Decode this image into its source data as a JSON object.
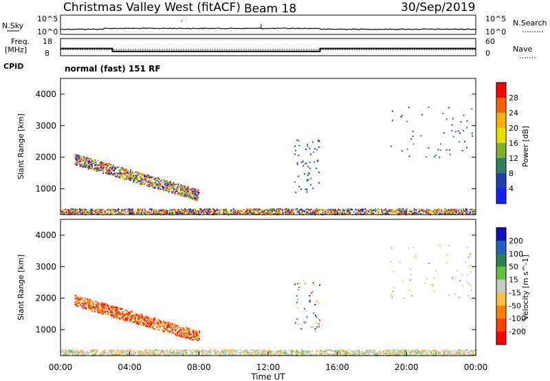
{
  "header": {
    "title": "Christmas Valley West (fitACF)",
    "beam": "Beam 18",
    "date": "30/Sep/2019"
  },
  "params": {
    "nsky_label": "N.Sky",
    "nsearch_label": "N.Search",
    "noise_ticks": [
      "10^5",
      "10^0"
    ],
    "noise_ticks_right": [
      "10^5",
      "10^0"
    ],
    "freq_label_1": "Freq.",
    "freq_label_2": "[MHz]",
    "freq_ticks": [
      "18",
      "8"
    ],
    "nave_label": "Nave",
    "nave_ticks": [
      "60",
      "0"
    ],
    "cpid_label": "CPID",
    "cpid_text": "normal (fast) 151 RF"
  },
  "chart_data": [
    {
      "type": "heatmap",
      "title": "",
      "ylabel": "Slant Range [km]",
      "ylim": [
        180,
        4500
      ],
      "yticks": [
        "4000",
        "3000",
        "2000",
        "1000"
      ],
      "colorbar": {
        "label": "Power [dB]",
        "ticks": [
          "28",
          "24",
          "20",
          "16",
          "12",
          "8",
          "4"
        ],
        "colors": [
          "#ff0000",
          "#ff6000",
          "#ffb000",
          "#e8e000",
          "#7fb030",
          "#2f8060",
          "#2040b0",
          "#1020ff"
        ]
      },
      "echo_regions": [
        {
          "name": "morning-band",
          "t": [
            0.8,
            8.0
          ],
          "r": [
            1950,
            800
          ],
          "level": "mixed-power"
        },
        {
          "name": "near-range-clutter",
          "t": [
            0.0,
            24.0
          ],
          "r": [
            200,
            380
          ],
          "level": "mixed-power"
        },
        {
          "name": "afternoon-patches",
          "t": [
            13.5,
            15.0
          ],
          "r": [
            900,
            2600
          ],
          "level": "low-power"
        },
        {
          "name": "evening-patches",
          "t": [
            19.0,
            23.8
          ],
          "r": [
            2000,
            3700
          ],
          "level": "low-power"
        }
      ]
    },
    {
      "type": "heatmap",
      "title": "",
      "xlabel": "Time UT",
      "ylabel": "Slant Range [km]",
      "ylim": [
        180,
        4500
      ],
      "yticks": [
        "4000",
        "3000",
        "2000",
        "1000"
      ],
      "xticks": [
        "00:00",
        "04:00",
        "08:00",
        "12:00",
        "16:00",
        "20:00",
        "00:00"
      ],
      "colorbar": {
        "label": "Velocity [m s^-1]",
        "ticks": [
          "200",
          "100",
          "50",
          "15",
          "-15",
          "-50",
          "-100",
          "-200"
        ],
        "colors": [
          "#1010c0",
          "#2060c0",
          "#308050",
          "#60c040",
          "#c8c8c8",
          "#ffc040",
          "#ff8000",
          "#ff4000",
          "#ff0000"
        ]
      },
      "echo_regions": [
        {
          "name": "morning-band",
          "t": [
            0.8,
            8.0
          ],
          "r": [
            1950,
            800
          ],
          "level": "negative-velocity"
        },
        {
          "name": "near-range-clutter",
          "t": [
            0.0,
            24.0
          ],
          "r": [
            200,
            380
          ],
          "level": "near-zero"
        },
        {
          "name": "afternoon-patches",
          "t": [
            13.5,
            15.0
          ],
          "r": [
            900,
            2600
          ],
          "level": "mixed"
        },
        {
          "name": "evening-patches",
          "t": [
            19.0,
            23.8
          ],
          "r": [
            2000,
            3700
          ],
          "level": "near-zero"
        }
      ]
    },
    {
      "type": "line",
      "name": "frequency",
      "x": [
        0,
        3,
        3,
        15,
        15,
        24
      ],
      "values": [
        12.2,
        12.2,
        10.5,
        10.5,
        12.2,
        12.2
      ],
      "ylim": [
        8,
        18
      ]
    }
  ]
}
